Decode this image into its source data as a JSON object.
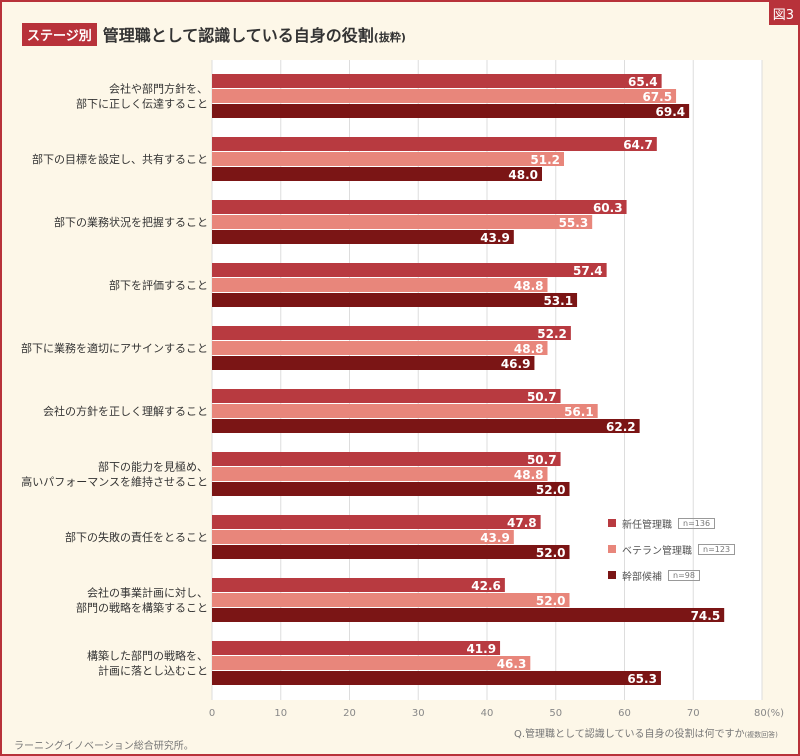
{
  "figure_label": "図3",
  "stage_badge": "ステージ別",
  "question": "Q.管理職として認識している自身の役割は何ですか",
  "question_note": "(複数回答)",
  "credit": "ラーニングイノベーション総合研究所。",
  "chart_data": {
    "type": "bar",
    "orientation": "horizontal",
    "title": "管理職として認識している自身の役割",
    "title_note": "(抜粋)",
    "xlim": [
      0,
      80
    ],
    "xticks": [
      "0",
      "10",
      "20",
      "30",
      "40",
      "50",
      "60",
      "70",
      "80(%)"
    ],
    "grid": true,
    "legend_position": "right",
    "categories": [
      [
        "会社や部門方針を、",
        "部下に正しく伝達すること"
      ],
      [
        "部下の目標を設定し、共有すること"
      ],
      [
        "部下の業務状況を把握すること"
      ],
      [
        "部下を評価すること"
      ],
      [
        "部下に業務を適切にアサインすること"
      ],
      [
        "会社の方針を正しく理解すること"
      ],
      [
        "部下の能力を見極め、",
        "高いパフォーマンスを維持させること"
      ],
      [
        "部下の失敗の責任をとること"
      ],
      [
        "会社の事業計画に対し、",
        "部門の戦略を構築すること"
      ],
      [
        "構築した部門の戦略を、",
        "計画に落とし込むこと"
      ]
    ],
    "series": [
      {
        "name": "新任管理職",
        "n": "n=136",
        "color": "#b83a40",
        "values": [
          65.4,
          64.7,
          60.3,
          57.4,
          52.2,
          50.7,
          50.7,
          47.8,
          42.6,
          41.9
        ]
      },
      {
        "name": "ベテラン管理職",
        "n": "n=123",
        "color": "#e8867b",
        "values": [
          67.5,
          51.2,
          55.3,
          48.8,
          48.8,
          56.1,
          48.8,
          43.9,
          52.0,
          46.3
        ]
      },
      {
        "name": "幹部候補",
        "n": "n=98",
        "color": "#7b1515",
        "values": [
          69.4,
          48.0,
          43.9,
          53.1,
          46.9,
          62.2,
          52.0,
          52.0,
          74.5,
          65.3
        ]
      }
    ]
  }
}
